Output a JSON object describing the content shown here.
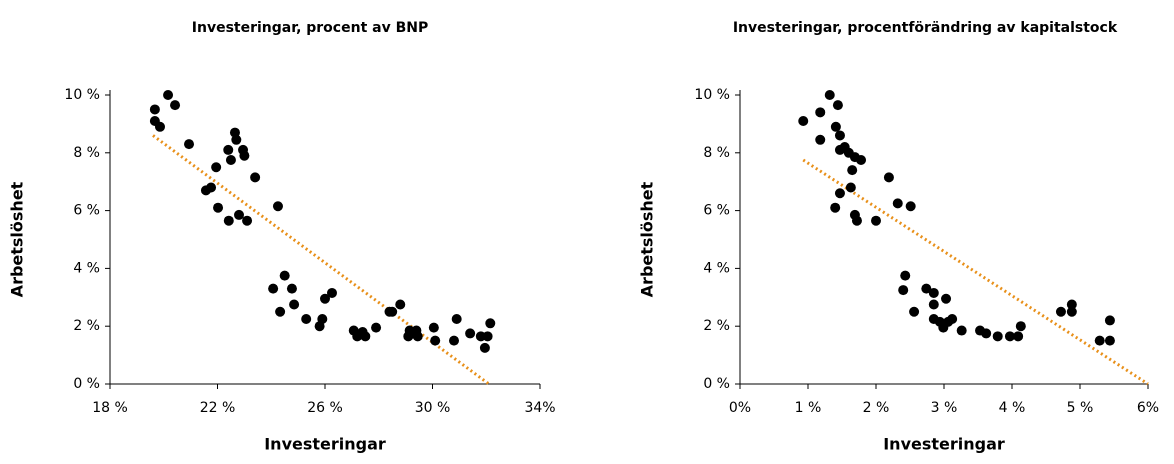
{
  "chart_data": [
    {
      "type": "scatter",
      "title": "Investeringar, procent av BNP",
      "x_label": "Investeringar",
      "y_label": "Arbetslöshet",
      "color": "#000000",
      "trend_color": "#E8901A",
      "xlim": [
        18,
        34
      ],
      "ylim": [
        0,
        10
      ],
      "xticks": [
        {
          "value": 18,
          "label": "18 %"
        },
        {
          "value": 22,
          "label": "22 %"
        },
        {
          "value": 26,
          "label": "26 %"
        },
        {
          "value": 30,
          "label": "30 %"
        },
        {
          "value": 34,
          "label": "34%"
        }
      ],
      "yticks": [
        {
          "value": 0,
          "label": "0 %"
        },
        {
          "value": 2,
          "label": "2 %"
        },
        {
          "value": 4,
          "label": "4 %"
        },
        {
          "value": 6,
          "label": "6 %"
        },
        {
          "value": 8,
          "label": "8 %"
        },
        {
          "value": 10,
          "label": "10 %"
        }
      ],
      "x": [
        19.67,
        19.67,
        19.86,
        20.16,
        20.42,
        20.94,
        21.57,
        21.76,
        21.95,
        22.02,
        22.4,
        22.5,
        22.65,
        22.7,
        22.42,
        22.8,
        22.95,
        23.0,
        23.1,
        23.4,
        24.25,
        24.07,
        24.5,
        24.33,
        24.77,
        24.85,
        25.3,
        25.8,
        25.9,
        26.0,
        26.26,
        27.07,
        27.2,
        27.4,
        27.5,
        27.9,
        28.4,
        28.5,
        28.8,
        29.1,
        29.15,
        29.4,
        29.45,
        30.05,
        30.1,
        30.8,
        30.9,
        31.4,
        31.8,
        31.95,
        32.05,
        32.15
      ],
      "values": [
        9.5,
        9.1,
        8.9,
        10.0,
        9.65,
        8.3,
        6.7,
        6.8,
        7.5,
        6.1,
        8.1,
        7.75,
        8.7,
        8.45,
        5.65,
        5.85,
        8.1,
        7.9,
        5.65,
        7.15,
        6.15,
        3.3,
        3.75,
        2.5,
        3.3,
        2.75,
        2.25,
        2.0,
        2.25,
        2.95,
        3.15,
        1.85,
        1.65,
        1.8,
        1.65,
        1.95,
        2.5,
        2.5,
        2.75,
        1.65,
        1.85,
        1.85,
        1.65,
        1.95,
        1.5,
        1.5,
        2.25,
        1.75,
        1.65,
        1.25,
        1.65,
        2.1
      ],
      "trendline": {
        "x": [
          19.6,
          32.1
        ],
        "y": [
          8.6,
          0
        ]
      }
    },
    {
      "type": "scatter",
      "title": "Investeringar, procentförändring av kapitalstock",
      "x_label": "Investeringar",
      "y_label": "Arbetslöshet",
      "color": "#000000",
      "trend_color": "#E8901A",
      "xlim": [
        0,
        6
      ],
      "ylim": [
        0,
        10
      ],
      "xticks": [
        {
          "value": 0,
          "label": "0%"
        },
        {
          "value": 1,
          "label": "1 %"
        },
        {
          "value": 2,
          "label": "2 %"
        },
        {
          "value": 3,
          "label": "3 %"
        },
        {
          "value": 4,
          "label": "4 %"
        },
        {
          "value": 5,
          "label": "5 %"
        },
        {
          "value": 6,
          "label": "6%"
        }
      ],
      "yticks": [
        {
          "value": 0,
          "label": "0 %"
        },
        {
          "value": 2,
          "label": "2 %"
        },
        {
          "value": 4,
          "label": "4 %"
        },
        {
          "value": 6,
          "label": "6 %"
        },
        {
          "value": 8,
          "label": "8 %"
        },
        {
          "value": 10,
          "label": "10 %"
        }
      ],
      "x": [
        0.93,
        1.18,
        1.18,
        1.32,
        1.44,
        1.41,
        1.47,
        1.47,
        1.54,
        1.6,
        1.69,
        1.78,
        1.65,
        1.47,
        1.4,
        1.63,
        1.69,
        1.72,
        2.0,
        2.19,
        2.32,
        2.51,
        2.43,
        2.4,
        2.56,
        2.74,
        2.85,
        2.85,
        3.03,
        2.85,
        2.94,
        2.99,
        3.06,
        3.12,
        3.26,
        3.53,
        3.62,
        3.79,
        3.97,
        4.09,
        4.13,
        4.72,
        4.88,
        4.88,
        5.29,
        5.44,
        5.44
      ],
      "values": [
        9.1,
        9.4,
        8.45,
        10.0,
        9.65,
        8.9,
        8.6,
        8.1,
        8.2,
        8.0,
        7.85,
        7.75,
        7.4,
        6.6,
        6.1,
        6.8,
        5.85,
        5.65,
        5.65,
        7.15,
        6.25,
        6.15,
        3.75,
        3.25,
        2.5,
        3.3,
        3.15,
        2.75,
        2.95,
        2.25,
        2.15,
        1.95,
        2.15,
        2.25,
        1.85,
        1.85,
        1.75,
        1.65,
        1.65,
        1.65,
        2.0,
        2.5,
        2.5,
        2.75,
        1.5,
        1.5,
        2.2
      ],
      "trendline": {
        "x": [
          0.93,
          6.0
        ],
        "y": [
          7.75,
          0
        ]
      }
    }
  ]
}
